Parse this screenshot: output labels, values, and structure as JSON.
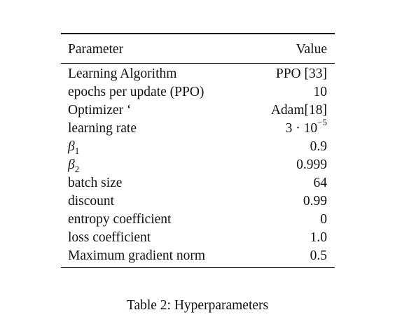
{
  "table": {
    "header": {
      "param": "Parameter",
      "value": "Value"
    },
    "rows": [
      {
        "param": "Learning Algorithm",
        "value": "PPO [33]"
      },
      {
        "param": "epochs per update (PPO)",
        "value": "10"
      },
      {
        "param": "Optimizer ‘",
        "value": "Adam[18]"
      },
      {
        "param": "learning rate",
        "value_base": "3 · 10",
        "value_exp": "−5"
      },
      {
        "param_symbol": "β",
        "param_sub": "1",
        "value": "0.9"
      },
      {
        "param_symbol": "β",
        "param_sub": "2",
        "value": "0.999"
      },
      {
        "param": "batch size",
        "value": "64"
      },
      {
        "param": "discount",
        "value": "0.99"
      },
      {
        "param": "entropy coefficient",
        "value": "0"
      },
      {
        "param": "loss coefficient",
        "value": "1.0"
      },
      {
        "param": "Maximum gradient norm",
        "value": "0.5"
      }
    ]
  },
  "caption": "Table 2: Hyperparameters"
}
